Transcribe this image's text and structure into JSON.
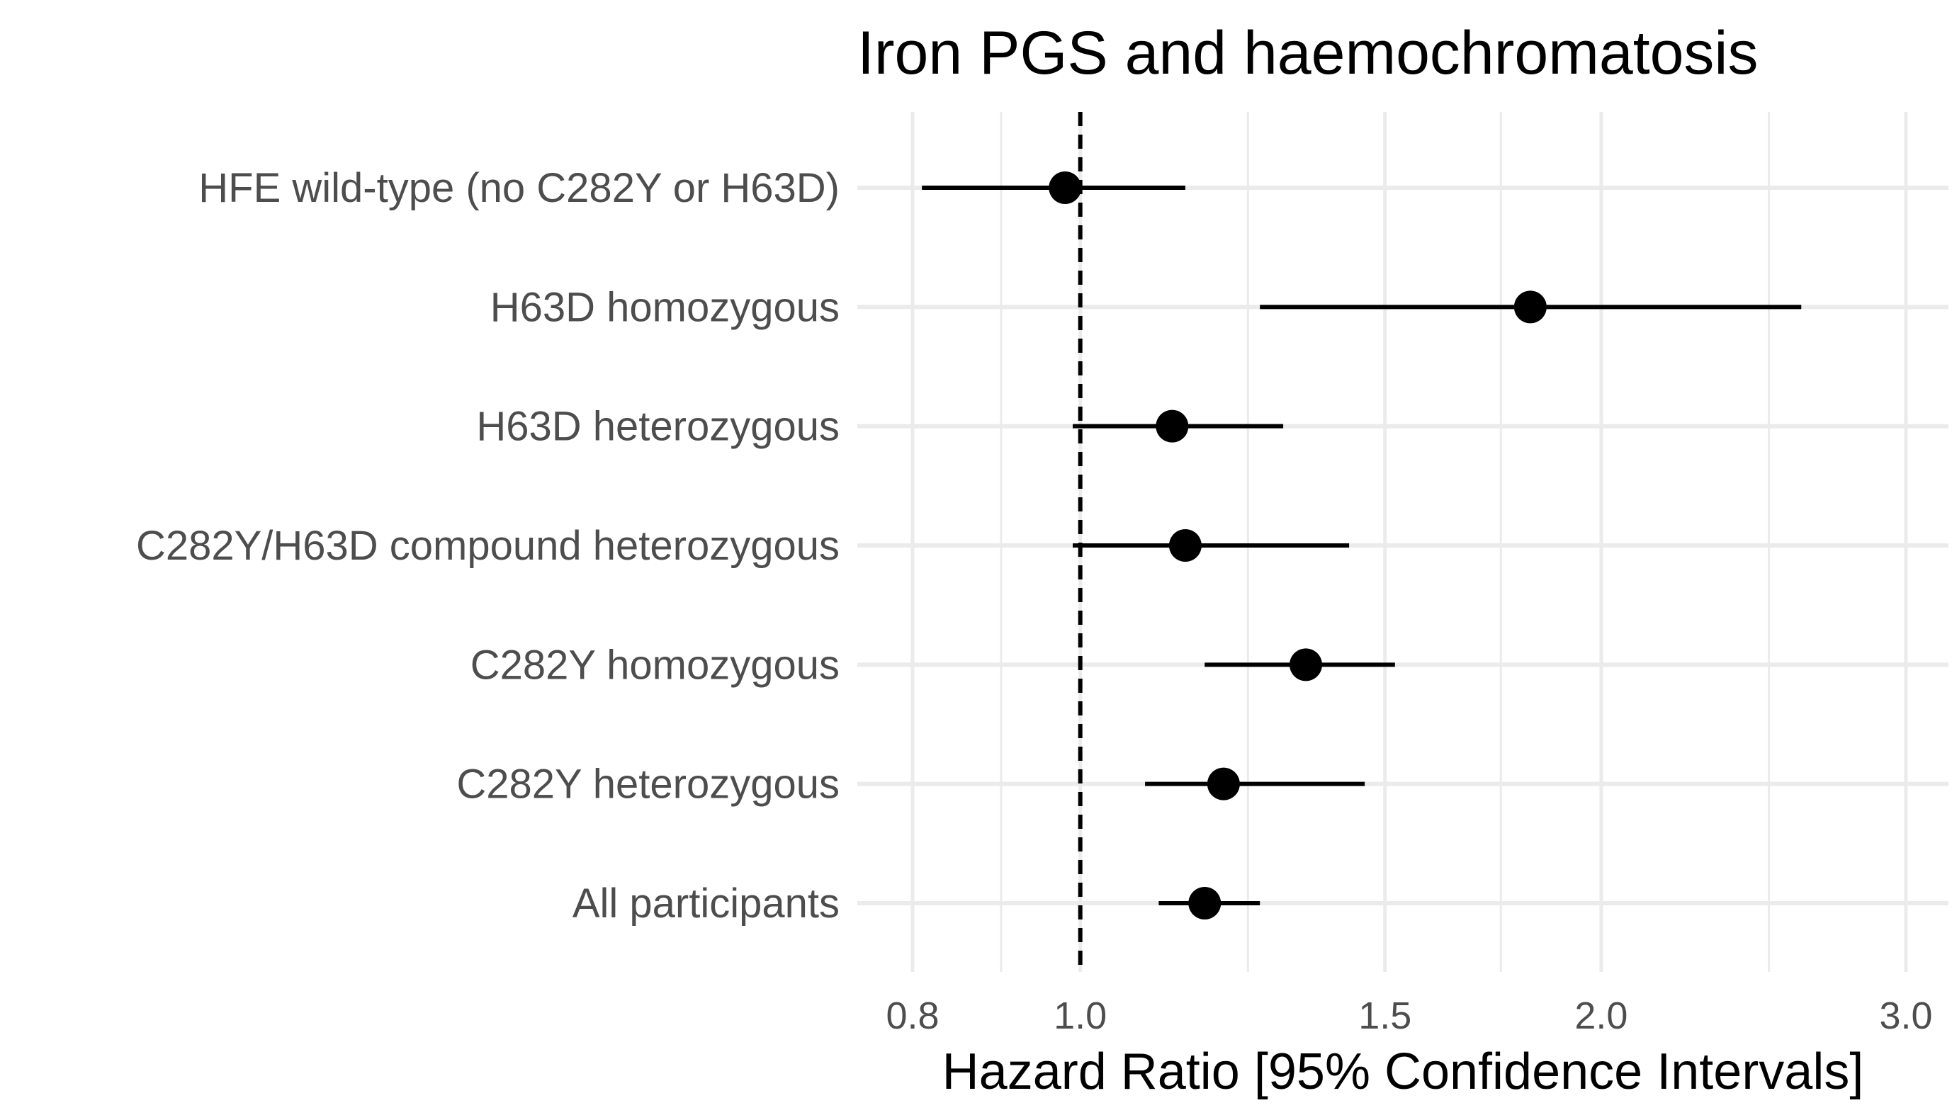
{
  "chart_data": {
    "type": "forest",
    "title": "Iron PGS and haemochromatosis",
    "xlabel": "Hazard Ratio [95% Confidence Intervals]",
    "ylabel": "",
    "x_scale": "log",
    "xlim": [
      0.78,
      3.1
    ],
    "x_ticks": [
      0.8,
      1.0,
      1.5,
      2.0,
      3.0
    ],
    "x_tick_labels": [
      "0.8",
      "1.0",
      "1.5",
      "2.0",
      "3.0"
    ],
    "x_minor_ticks": [
      0.9,
      1.25,
      1.75,
      2.5
    ],
    "reference_line": 1.0,
    "grid": true,
    "categories": [
      "HFE wild-type (no C282Y or H63D)",
      "H63D homozygous",
      "H63D heterozygous",
      "C282Y/H63D compound heterozygous",
      "C282Y homozygous",
      "C282Y heterozygous",
      "All participants"
    ],
    "estimates": [
      0.98,
      1.82,
      1.13,
      1.15,
      1.35,
      1.21,
      1.18
    ],
    "lower": [
      0.81,
      1.27,
      0.99,
      0.99,
      1.18,
      1.09,
      1.11
    ],
    "upper": [
      1.15,
      2.61,
      1.31,
      1.43,
      1.52,
      1.46,
      1.27
    ],
    "colors": {
      "point": "#000000",
      "grid": "#ebebeb",
      "text": "#4d4d4d"
    }
  }
}
